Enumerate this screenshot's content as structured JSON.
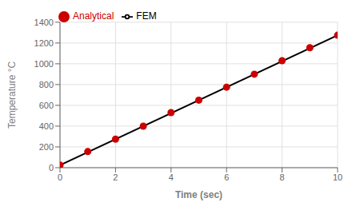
{
  "chart_data": {
    "type": "line",
    "xlabel": "Time (sec)",
    "ylabel": "Temperature °C",
    "xlim": [
      0,
      10
    ],
    "ylim": [
      0,
      1400
    ],
    "xticks": [
      0,
      2,
      4,
      6,
      8,
      10
    ],
    "yticks": [
      0,
      200,
      400,
      600,
      800,
      1000,
      1200,
      1400
    ],
    "grid": true,
    "legend": "upper left",
    "series": [
      {
        "name": "FEM",
        "type": "line",
        "color": "#000000",
        "x": [
          0,
          10
        ],
        "values": [
          25,
          1275
        ]
      },
      {
        "name": "Analytical",
        "type": "scatter",
        "color": "#cc0000",
        "marker": "circle",
        "x": [
          0,
          1,
          2,
          3,
          4,
          5,
          6,
          7,
          8,
          9,
          10
        ],
        "values": [
          25,
          155,
          275,
          400,
          530,
          650,
          775,
          900,
          1030,
          1155,
          1275
        ]
      }
    ]
  }
}
